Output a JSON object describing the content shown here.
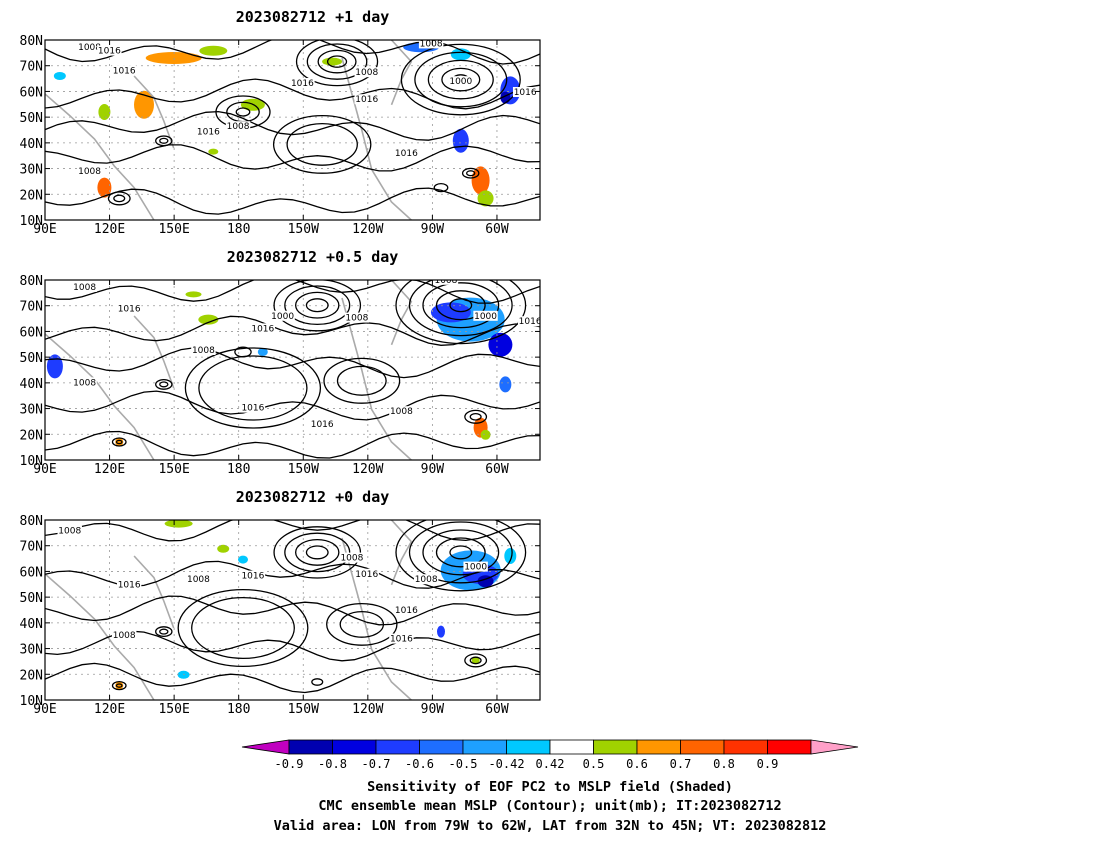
{
  "chart_data": {
    "type": "heatmap",
    "panels": [
      {
        "title": "2023082712  +1 day",
        "contour_labels": [
          "1008",
          "1016",
          "1008",
          "1016",
          "1016",
          "1008",
          "1016",
          "1000",
          "1016",
          "1008",
          "1016",
          "1016",
          "1008"
        ]
      },
      {
        "title": "2023082712  +0.5 day",
        "contour_labels": [
          "1008",
          "1016",
          "1008",
          "1016",
          "1008",
          "1000",
          "1008",
          "1000",
          "1016",
          "1008",
          "1016",
          "1016",
          "1008"
        ]
      },
      {
        "title": "2023082712  +0 day",
        "contour_labels": [
          "1008",
          "1016",
          "1008",
          "1016",
          "1008",
          "1016",
          "1008",
          "1000",
          "1016",
          "1016",
          "1008"
        ]
      }
    ],
    "x_ticks": [
      "90E",
      "120E",
      "150E",
      "180",
      "150W",
      "120W",
      "90W",
      "60W"
    ],
    "x_values": [
      90,
      120,
      150,
      180,
      210,
      240,
      270,
      300
    ],
    "xlim": [
      90,
      320
    ],
    "y_ticks": [
      "80N",
      "70N",
      "60N",
      "50N",
      "40N",
      "30N",
      "20N",
      "10N"
    ],
    "y_values": [
      80,
      70,
      60,
      50,
      40,
      30,
      20,
      10
    ],
    "ylim": [
      10,
      80
    ],
    "grid": "dotted",
    "colorbar": {
      "labels": [
        "-0.9",
        "-0.8",
        "-0.7",
        "-0.6",
        "-0.5",
        "-0.42",
        "0.42",
        "0.5",
        "0.6",
        "0.7",
        "0.8",
        "0.9"
      ],
      "colors": [
        "#c000c0",
        "#0000b0",
        "#0000e0",
        "#1e3cff",
        "#1e6eff",
        "#1ea0ff",
        "#00c8ff",
        "#ffffff",
        "#a0d200",
        "#ff9600",
        "#ff6400",
        "#ff3200",
        "#ff0000",
        "#ffa0c8"
      ],
      "bounds": [
        -0.9,
        -0.8,
        -0.7,
        -0.6,
        -0.5,
        -0.42,
        0.42,
        0.5,
        0.6,
        0.7,
        0.8,
        0.9
      ]
    },
    "caption": [
      "Sensitivity of EOF PC2 to MSLP field (Shaded)",
      "CMC ensemble mean MSLP (Contour); unit(mb); IT:2023082712",
      "Valid area: LON from 79W to 62W, LAT from 32N to 45N; VT: 2023082812"
    ]
  }
}
